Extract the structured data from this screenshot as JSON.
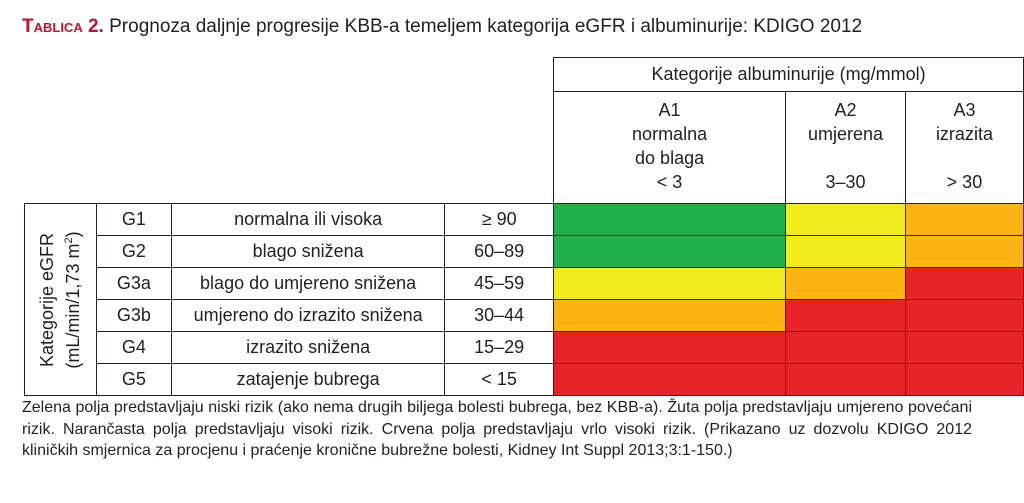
{
  "caption": {
    "label": "Tablica 2.",
    "title": " Prognoza daljnje progresije KBB-a temeljem kategorija eGFR i albuminurije: KDIGO 2012"
  },
  "table": {
    "albuminuria_header": "Kategorije albuminurije (mg/mmol)",
    "albuminuria_categories": [
      {
        "code": "A1",
        "desc1": "normalna",
        "desc2": "do blaga",
        "range": "< 3"
      },
      {
        "code": "A2",
        "desc1": "umjerena",
        "desc2": "",
        "range": "3–30"
      },
      {
        "code": "A3",
        "desc1": "izrazita",
        "desc2": "",
        "range": "> 30"
      }
    ],
    "egfr_axis_line1": "Kategorije eGFR",
    "egfr_axis_line2": "(mL/min/1,73 m",
    "egfr_axis_sup": "2",
    "egfr_axis_close": ")",
    "rows": [
      {
        "code": "G1",
        "desc": "normalna ili visoka",
        "range": "≥ 90",
        "risk": [
          "green",
          "yellow",
          "orange"
        ]
      },
      {
        "code": "G2",
        "desc": "blago snižena",
        "range": "60–89",
        "risk": [
          "green",
          "yellow",
          "orange"
        ]
      },
      {
        "code": "G3a",
        "desc": "blago do umjereno snižena",
        "range": "45–59",
        "risk": [
          "yellow",
          "orange",
          "red"
        ]
      },
      {
        "code": "G3b",
        "desc": "umjereno do izrazito snižena",
        "range": "30–44",
        "risk": [
          "orange",
          "red",
          "red"
        ]
      },
      {
        "code": "G4",
        "desc": "izrazito snižena",
        "range": "15–29",
        "risk": [
          "red",
          "red",
          "red"
        ]
      },
      {
        "code": "G5",
        "desc": "zatajenje bubrega",
        "range": "< 15",
        "risk": [
          "red",
          "red",
          "red"
        ]
      }
    ],
    "risk_colors": {
      "green": "#22b04b",
      "yellow": "#f3ec1c",
      "orange": "#fbb414",
      "red": "#e8232a"
    }
  },
  "note": "Zelena polja predstavljaju niski rizik (ako nema drugih biljega bolesti bubrega, bez KBB-a). Žuta polja predstavljaju umjereno povećani rizik. Narančasta polja predstavljaju visoki rizik. Crvena polja predstavljaju vrlo visoki rizik. (Prikazano uz dozvolu KDIGO 2012 kliničkih smjernica za procjenu i praćenje kronične bubrežne bolesti, Kidney Int Suppl 2013;3:1-150.)"
}
